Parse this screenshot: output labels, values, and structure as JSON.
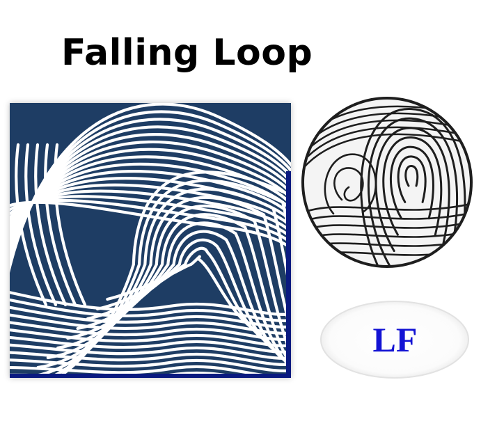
{
  "title": "Falling Loop",
  "square_print": {
    "ridge_color": "#1e3d64",
    "line_color": "#ffffff",
    "edge_color": "#0a1a80"
  },
  "circle_print": {
    "ridge_color": "#1e1e1e"
  },
  "badge": {
    "label": "LF",
    "color": "#1313d4"
  }
}
